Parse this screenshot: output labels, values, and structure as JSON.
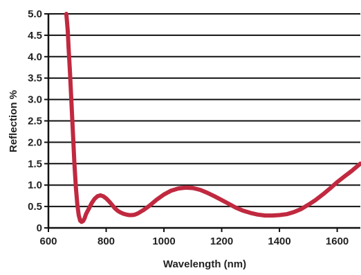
{
  "chart_data": {
    "type": "line",
    "title": "",
    "xlabel": "Wavelength (nm)",
    "ylabel": "Reflection %",
    "xlim": [
      600,
      1680
    ],
    "ylim": [
      0,
      5.0
    ],
    "x_ticks": [
      600,
      800,
      1000,
      1200,
      1400,
      1600
    ],
    "x_tick_labels": [
      "600",
      "800",
      "1000",
      "1200",
      "1400",
      "1600"
    ],
    "y_ticks": [
      0,
      0.5,
      1.0,
      1.5,
      2.0,
      2.5,
      3.0,
      3.5,
      4.0,
      4.5,
      5.0
    ],
    "y_tick_labels": [
      "0",
      "0.5",
      "1.0",
      "1.5",
      "2.0",
      "2.5",
      "3.0",
      "3.5",
      "4.0",
      "4.5",
      "5.0"
    ],
    "grid": "horizontal",
    "colors": {
      "line": "#c0293f",
      "grid": "#111111",
      "axis": "#111111"
    },
    "series": [
      {
        "x": [
          662,
          664,
          667,
          670,
          675,
          680,
          685,
          690,
          695,
          700,
          705,
          710,
          715,
          720,
          725,
          730,
          740,
          750,
          760,
          770,
          780,
          790,
          800,
          810,
          820,
          830,
          840,
          850,
          860,
          870,
          880,
          890,
          900,
          910,
          920,
          930,
          950,
          975,
          1000,
          1025,
          1050,
          1075,
          1100,
          1125,
          1150,
          1175,
          1200,
          1225,
          1250,
          1275,
          1300,
          1325,
          1350,
          1375,
          1400,
          1425,
          1450,
          1475,
          1500,
          1525,
          1550,
          1575,
          1600,
          1625,
          1650,
          1680
        ],
        "y": [
          5.0,
          4.85,
          4.6,
          4.2,
          3.6,
          2.9,
          2.2,
          1.5,
          0.95,
          0.55,
          0.3,
          0.17,
          0.14,
          0.16,
          0.22,
          0.32,
          0.45,
          0.58,
          0.68,
          0.74,
          0.76,
          0.74,
          0.69,
          0.62,
          0.54,
          0.46,
          0.4,
          0.36,
          0.33,
          0.31,
          0.3,
          0.3,
          0.31,
          0.34,
          0.38,
          0.42,
          0.52,
          0.66,
          0.78,
          0.87,
          0.92,
          0.94,
          0.93,
          0.89,
          0.82,
          0.74,
          0.65,
          0.56,
          0.47,
          0.4,
          0.35,
          0.31,
          0.29,
          0.29,
          0.3,
          0.32,
          0.37,
          0.44,
          0.54,
          0.65,
          0.78,
          0.92,
          1.07,
          1.2,
          1.33,
          1.5
        ]
      }
    ]
  }
}
